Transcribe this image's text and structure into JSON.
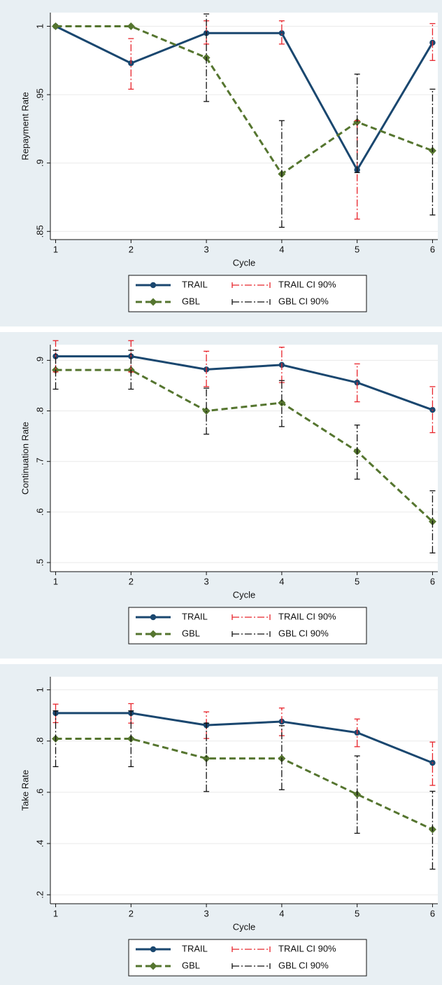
{
  "chart_data": [
    {
      "type": "line",
      "ylabel": "Repayment Rate",
      "xlabel": "Cycle",
      "x": [
        1,
        2,
        3,
        4,
        5,
        6
      ],
      "xlim": [
        0.93,
        6.07
      ],
      "xticks": [
        1,
        2,
        3,
        4,
        5,
        6
      ],
      "ylim": [
        0.844,
        1.01
      ],
      "yticks": [
        {
          "value": 0.85,
          "label": ".85"
        },
        {
          "value": 0.9,
          "label": ".9"
        },
        {
          "value": 0.95,
          "label": ".95"
        },
        1
      ],
      "grid": true,
      "series": [
        {
          "name": "TRAIL",
          "color": "#1a476f",
          "marker": "circle",
          "dash": "solid",
          "values": [
            1,
            0.973,
            0.995,
            0.995,
            0.895,
            0.988
          ]
        },
        {
          "name": "GBL",
          "color": "#55752f",
          "marker": "diamond",
          "dash": "dashed",
          "values": [
            1,
            1,
            0.977,
            0.892,
            0.93,
            0.909
          ]
        }
      ],
      "error_bars": [
        {
          "name": "TRAIL CI 90%",
          "color": "#e8242b",
          "lower": [
            null,
            0.954,
            0.987,
            0.987,
            0.859,
            0.975
          ],
          "upper": [
            null,
            0.991,
            1.004,
            1.004,
            0.931,
            1.002
          ]
        },
        {
          "name": "GBL CI 90%",
          "color": "#111111",
          "lower": [
            null,
            null,
            0.945,
            0.853,
            0.893,
            0.862
          ],
          "upper": [
            null,
            null,
            1.009,
            0.931,
            0.965,
            0.954
          ]
        }
      ]
    },
    {
      "type": "line",
      "ylabel": "Continuation Rate",
      "xlabel": "Cycle",
      "x": [
        1,
        2,
        3,
        4,
        5,
        6
      ],
      "xlim": [
        0.93,
        6.07
      ],
      "xticks": [
        1,
        2,
        3,
        4,
        5,
        6
      ],
      "ylim": [
        0.482,
        0.931
      ],
      "yticks": [
        {
          "value": 0.5,
          "label": ".5"
        },
        {
          "value": 0.6,
          "label": ".6"
        },
        {
          "value": 0.7,
          "label": ".7"
        },
        {
          "value": 0.8,
          "label": ".8"
        },
        {
          "value": 0.9,
          "label": ".9"
        }
      ],
      "grid": true,
      "series": [
        {
          "name": "TRAIL",
          "color": "#1a476f",
          "marker": "circle",
          "dash": "solid",
          "values": [
            0.908,
            0.908,
            0.882,
            0.891,
            0.856,
            0.802
          ]
        },
        {
          "name": "GBL",
          "color": "#55752f",
          "marker": "diamond",
          "dash": "dashed",
          "values": [
            0.881,
            0.881,
            0.8,
            0.816,
            0.72,
            0.581
          ]
        }
      ],
      "error_bars": [
        {
          "name": "TRAIL CI 90%",
          "color": "#e8242b",
          "lower": [
            0.877,
            0.877,
            0.848,
            0.856,
            0.818,
            0.757
          ],
          "upper": [
            0.939,
            0.939,
            0.918,
            0.926,
            0.893,
            0.848
          ]
        },
        {
          "name": "GBL CI 90%",
          "color": "#111111",
          "lower": [
            0.843,
            0.843,
            0.754,
            0.769,
            0.665,
            0.519
          ],
          "upper": [
            0.92,
            0.92,
            0.845,
            0.86,
            0.772,
            0.642
          ]
        }
      ]
    },
    {
      "type": "line",
      "ylabel": "Take Rate",
      "xlabel": "Cycle",
      "x": [
        1,
        2,
        3,
        4,
        5,
        6
      ],
      "xlim": [
        0.93,
        6.07
      ],
      "xticks": [
        1,
        2,
        3,
        4,
        5,
        6
      ],
      "ylim": [
        0.165,
        1.051
      ],
      "yticks": [
        {
          "value": 0.2,
          "label": ".2"
        },
        {
          "value": 0.4,
          "label": ".4"
        },
        {
          "value": 0.6,
          "label": ".6"
        },
        {
          "value": 0.8,
          "label": ".8"
        },
        1
      ],
      "grid": true,
      "series": [
        {
          "name": "TRAIL",
          "color": "#1a476f",
          "marker": "circle",
          "dash": "solid",
          "values": [
            0.909,
            0.909,
            0.862,
            0.876,
            0.833,
            0.715
          ]
        },
        {
          "name": "GBL",
          "color": "#55752f",
          "marker": "diamond",
          "dash": "dashed",
          "values": [
            0.809,
            0.809,
            0.732,
            0.732,
            0.592,
            0.455
          ]
        }
      ],
      "error_bars": [
        {
          "name": "TRAIL CI 90%",
          "color": "#e8242b",
          "lower": [
            0.872,
            0.87,
            0.81,
            0.821,
            0.778,
            0.627
          ],
          "upper": [
            0.944,
            0.946,
            0.914,
            0.929,
            0.886,
            0.796
          ]
        },
        {
          "name": "GBL CI 90%",
          "color": "#111111",
          "lower": [
            0.7,
            0.7,
            0.603,
            0.61,
            0.44,
            0.3
          ],
          "upper": [
            0.918,
            0.918,
            0.87,
            0.86,
            0.742,
            0.604
          ]
        }
      ]
    }
  ]
}
